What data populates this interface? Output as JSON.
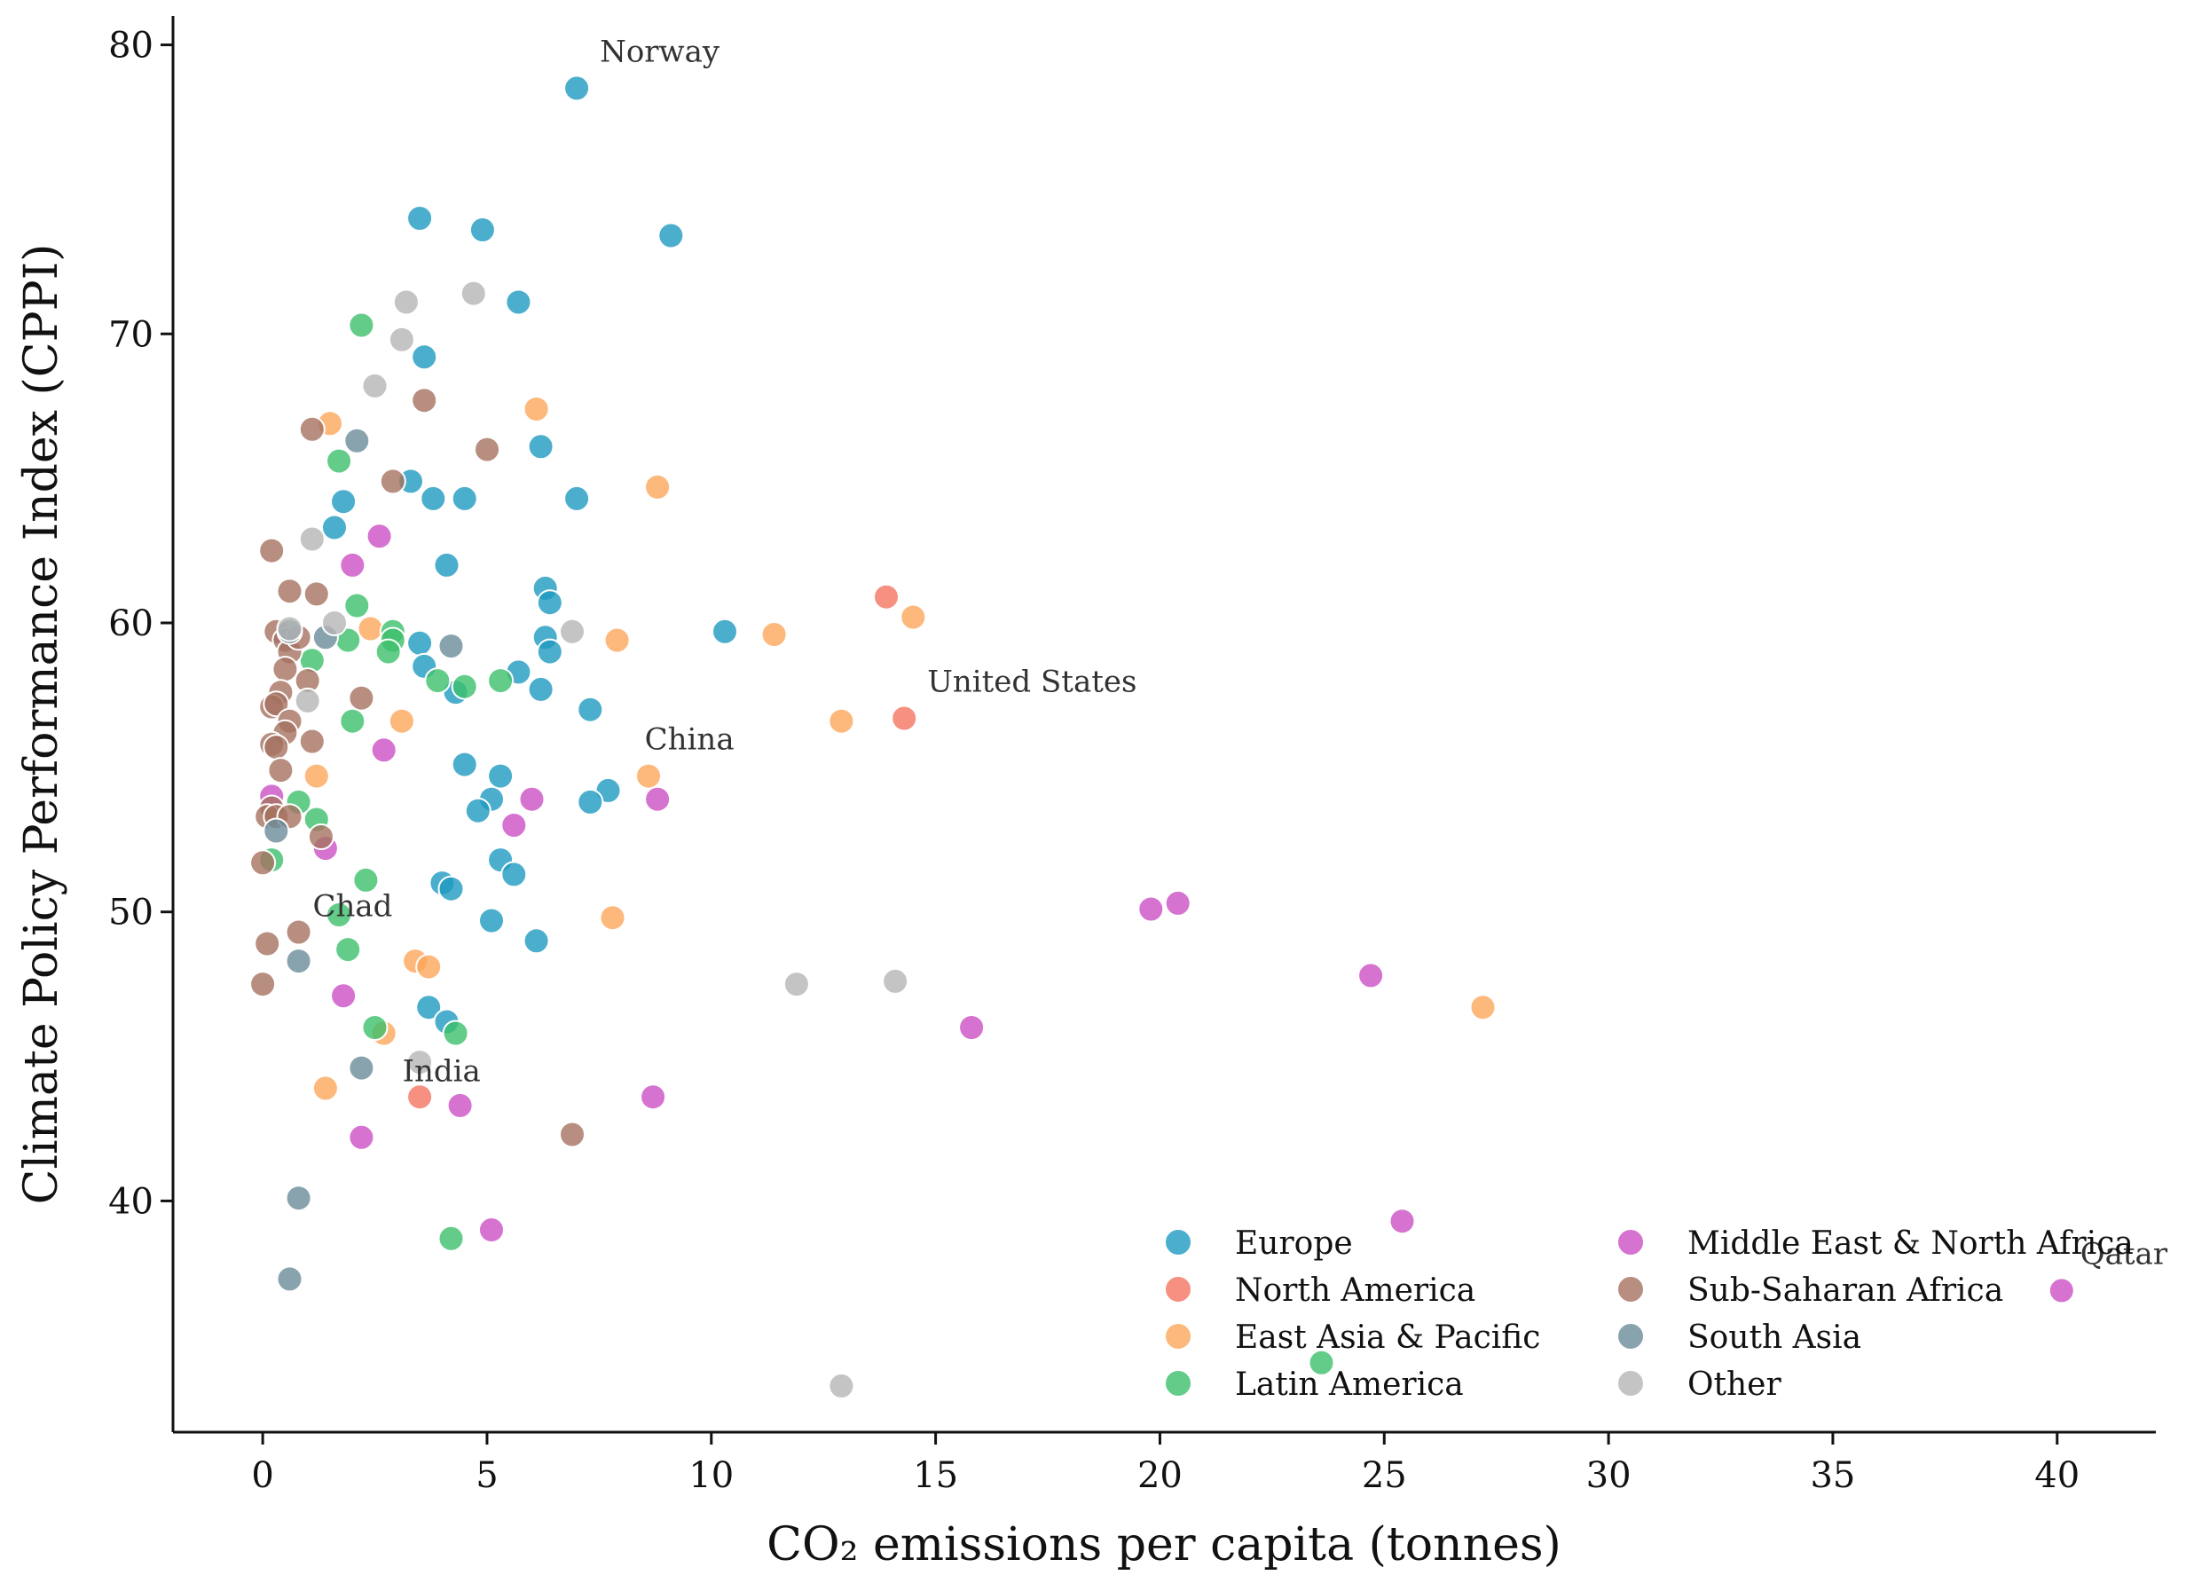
{
  "chart_data": {
    "type": "scatter",
    "title": "",
    "xlabel": "CO₂ emissions per capita (tonnes)",
    "ylabel": "Climate Policy Performance Index (CPPI)",
    "xlim": [
      -2,
      42.2
    ],
    "ylim": [
      32,
      81
    ],
    "xticks": [
      0,
      5,
      10,
      15,
      20,
      25,
      30,
      35,
      40
    ],
    "yticks": [
      40,
      50,
      60,
      70,
      80
    ],
    "legend_position": "lower-right",
    "annotations": [
      {
        "text": "Norway",
        "x": 7.0,
        "y": 78.5
      },
      {
        "text": "United States",
        "x": 14.3,
        "y": 56.7
      },
      {
        "text": "China",
        "x": 8.0,
        "y": 54.7
      },
      {
        "text": "Chad",
        "x": 0.6,
        "y": 49.3
      },
      {
        "text": "India",
        "x": 2.6,
        "y": 45.0
      },
      {
        "text": "Qatar",
        "x": 40.0,
        "y": 36.9
      }
    ],
    "series": [
      {
        "name": "Europe",
        "color": "#1f9ac0",
        "points": [
          [
            7.0,
            78.5
          ],
          [
            3.5,
            74.0
          ],
          [
            4.9,
            73.6
          ],
          [
            9.1,
            73.4
          ],
          [
            5.7,
            71.1
          ],
          [
            3.6,
            69.2
          ],
          [
            6.2,
            66.1
          ],
          [
            3.3,
            64.9
          ],
          [
            3.8,
            64.3
          ],
          [
            4.5,
            64.3
          ],
          [
            7.0,
            64.3
          ],
          [
            1.8,
            64.2
          ],
          [
            1.6,
            63.3
          ],
          [
            4.1,
            62.0
          ],
          [
            6.3,
            61.2
          ],
          [
            6.4,
            60.7
          ],
          [
            10.3,
            59.7
          ],
          [
            6.3,
            59.5
          ],
          [
            6.4,
            59.0
          ],
          [
            3.5,
            59.3
          ],
          [
            3.6,
            58.5
          ],
          [
            5.7,
            58.3
          ],
          [
            4.3,
            57.6
          ],
          [
            6.2,
            57.7
          ],
          [
            7.3,
            57.0
          ],
          [
            4.5,
            55.1
          ],
          [
            5.3,
            54.7
          ],
          [
            5.1,
            53.9
          ],
          [
            7.7,
            54.2
          ],
          [
            4.8,
            53.5
          ],
          [
            7.3,
            53.8
          ],
          [
            5.3,
            51.8
          ],
          [
            5.6,
            51.3
          ],
          [
            4.0,
            51.0
          ],
          [
            4.2,
            50.8
          ],
          [
            5.1,
            49.7
          ],
          [
            6.1,
            49.0
          ],
          [
            3.7,
            46.7
          ],
          [
            4.1,
            46.2
          ]
        ]
      },
      {
        "name": "North America",
        "color": "#f47462",
        "points": [
          [
            13.9,
            60.9
          ],
          [
            14.3,
            56.7
          ],
          [
            3.5,
            43.6
          ]
        ]
      },
      {
        "name": "East Asia & Pacific",
        "color": "#fca65a",
        "points": [
          [
            1.5,
            66.9
          ],
          [
            6.1,
            67.4
          ],
          [
            8.8,
            64.7
          ],
          [
            14.5,
            60.2
          ],
          [
            11.4,
            59.6
          ],
          [
            7.9,
            59.4
          ],
          [
            2.4,
            59.8
          ],
          [
            12.9,
            56.6
          ],
          [
            3.1,
            56.6
          ],
          [
            8.6,
            54.7
          ],
          [
            1.2,
            54.7
          ],
          [
            7.8,
            49.8
          ],
          [
            3.4,
            48.3
          ],
          [
            3.7,
            48.1
          ],
          [
            27.2,
            46.7
          ],
          [
            2.7,
            45.8
          ],
          [
            1.4,
            43.9
          ]
        ]
      },
      {
        "name": "Latin America",
        "color": "#3cbf6c",
        "points": [
          [
            2.2,
            70.3
          ],
          [
            1.7,
            65.6
          ],
          [
            2.1,
            60.6
          ],
          [
            2.9,
            59.7
          ],
          [
            1.9,
            59.4
          ],
          [
            2.9,
            59.4
          ],
          [
            2.8,
            59.0
          ],
          [
            1.1,
            58.7
          ],
          [
            3.9,
            58.0
          ],
          [
            4.5,
            57.8
          ],
          [
            5.3,
            58.0
          ],
          [
            2.0,
            56.6
          ],
          [
            1.2,
            53.2
          ],
          [
            0.8,
            53.8
          ],
          [
            0.2,
            51.8
          ],
          [
            2.3,
            51.1
          ],
          [
            1.7,
            49.9
          ],
          [
            1.9,
            48.7
          ],
          [
            2.5,
            46.0
          ],
          [
            4.3,
            45.8
          ],
          [
            4.2,
            38.7
          ],
          [
            23.6,
            34.4
          ]
        ]
      },
      {
        "name": "Middle East & North Africa",
        "color": "#cc4fc4",
        "points": [
          [
            2.0,
            62.0
          ],
          [
            2.6,
            63.0
          ],
          [
            2.7,
            55.6
          ],
          [
            6.0,
            53.9
          ],
          [
            5.6,
            53.0
          ],
          [
            8.8,
            53.9
          ],
          [
            1.4,
            52.2
          ],
          [
            0.2,
            54.0
          ],
          [
            19.8,
            50.1
          ],
          [
            20.4,
            50.3
          ],
          [
            24.7,
            47.8
          ],
          [
            15.8,
            46.0
          ],
          [
            1.8,
            47.1
          ],
          [
            8.7,
            43.6
          ],
          [
            4.4,
            43.3
          ],
          [
            2.2,
            42.2
          ],
          [
            5.1,
            39.0
          ],
          [
            25.4,
            39.3
          ],
          [
            40.1,
            36.9
          ]
        ]
      },
      {
        "name": "Sub-Saharan Africa",
        "color": "#a57260",
        "points": [
          [
            3.6,
            67.7
          ],
          [
            1.1,
            66.7
          ],
          [
            5.0,
            66.0
          ],
          [
            2.9,
            64.9
          ],
          [
            0.2,
            62.5
          ],
          [
            0.6,
            61.1
          ],
          [
            1.2,
            61.0
          ],
          [
            0.3,
            59.7
          ],
          [
            0.5,
            59.4
          ],
          [
            0.6,
            59.0
          ],
          [
            0.8,
            59.5
          ],
          [
            0.5,
            58.4
          ],
          [
            1.0,
            58.0
          ],
          [
            0.4,
            57.6
          ],
          [
            0.2,
            57.1
          ],
          [
            0.3,
            57.2
          ],
          [
            0.6,
            56.6
          ],
          [
            0.5,
            56.2
          ],
          [
            2.2,
            57.4
          ],
          [
            0.2,
            55.8
          ],
          [
            0.3,
            55.7
          ],
          [
            0.4,
            54.9
          ],
          [
            1.1,
            55.9
          ],
          [
            0.2,
            53.6
          ],
          [
            0.1,
            53.3
          ],
          [
            0.3,
            53.3
          ],
          [
            0.6,
            53.3
          ],
          [
            1.3,
            52.6
          ],
          [
            0.0,
            51.7
          ],
          [
            0.1,
            48.9
          ],
          [
            0.8,
            49.3
          ],
          [
            0.0,
            47.5
          ],
          [
            6.9,
            42.3
          ]
        ]
      },
      {
        "name": "South Asia",
        "color": "#6a8c9a",
        "points": [
          [
            2.1,
            66.3
          ],
          [
            0.6,
            59.7
          ],
          [
            1.4,
            59.5
          ],
          [
            4.2,
            59.2
          ],
          [
            0.3,
            52.8
          ],
          [
            0.8,
            48.3
          ],
          [
            2.2,
            44.6
          ],
          [
            0.8,
            40.1
          ],
          [
            0.6,
            37.3
          ]
        ]
      },
      {
        "name": "Other",
        "color": "#b5b5b5",
        "points": [
          [
            3.2,
            71.1
          ],
          [
            4.7,
            71.4
          ],
          [
            3.1,
            69.8
          ],
          [
            2.5,
            68.2
          ],
          [
            1.1,
            62.9
          ],
          [
            1.6,
            60.0
          ],
          [
            6.9,
            59.7
          ],
          [
            0.6,
            59.8
          ],
          [
            1.0,
            57.3
          ],
          [
            11.9,
            47.5
          ],
          [
            14.1,
            47.6
          ],
          [
            3.5,
            44.8
          ],
          [
            12.9,
            33.6
          ]
        ]
      }
    ]
  }
}
